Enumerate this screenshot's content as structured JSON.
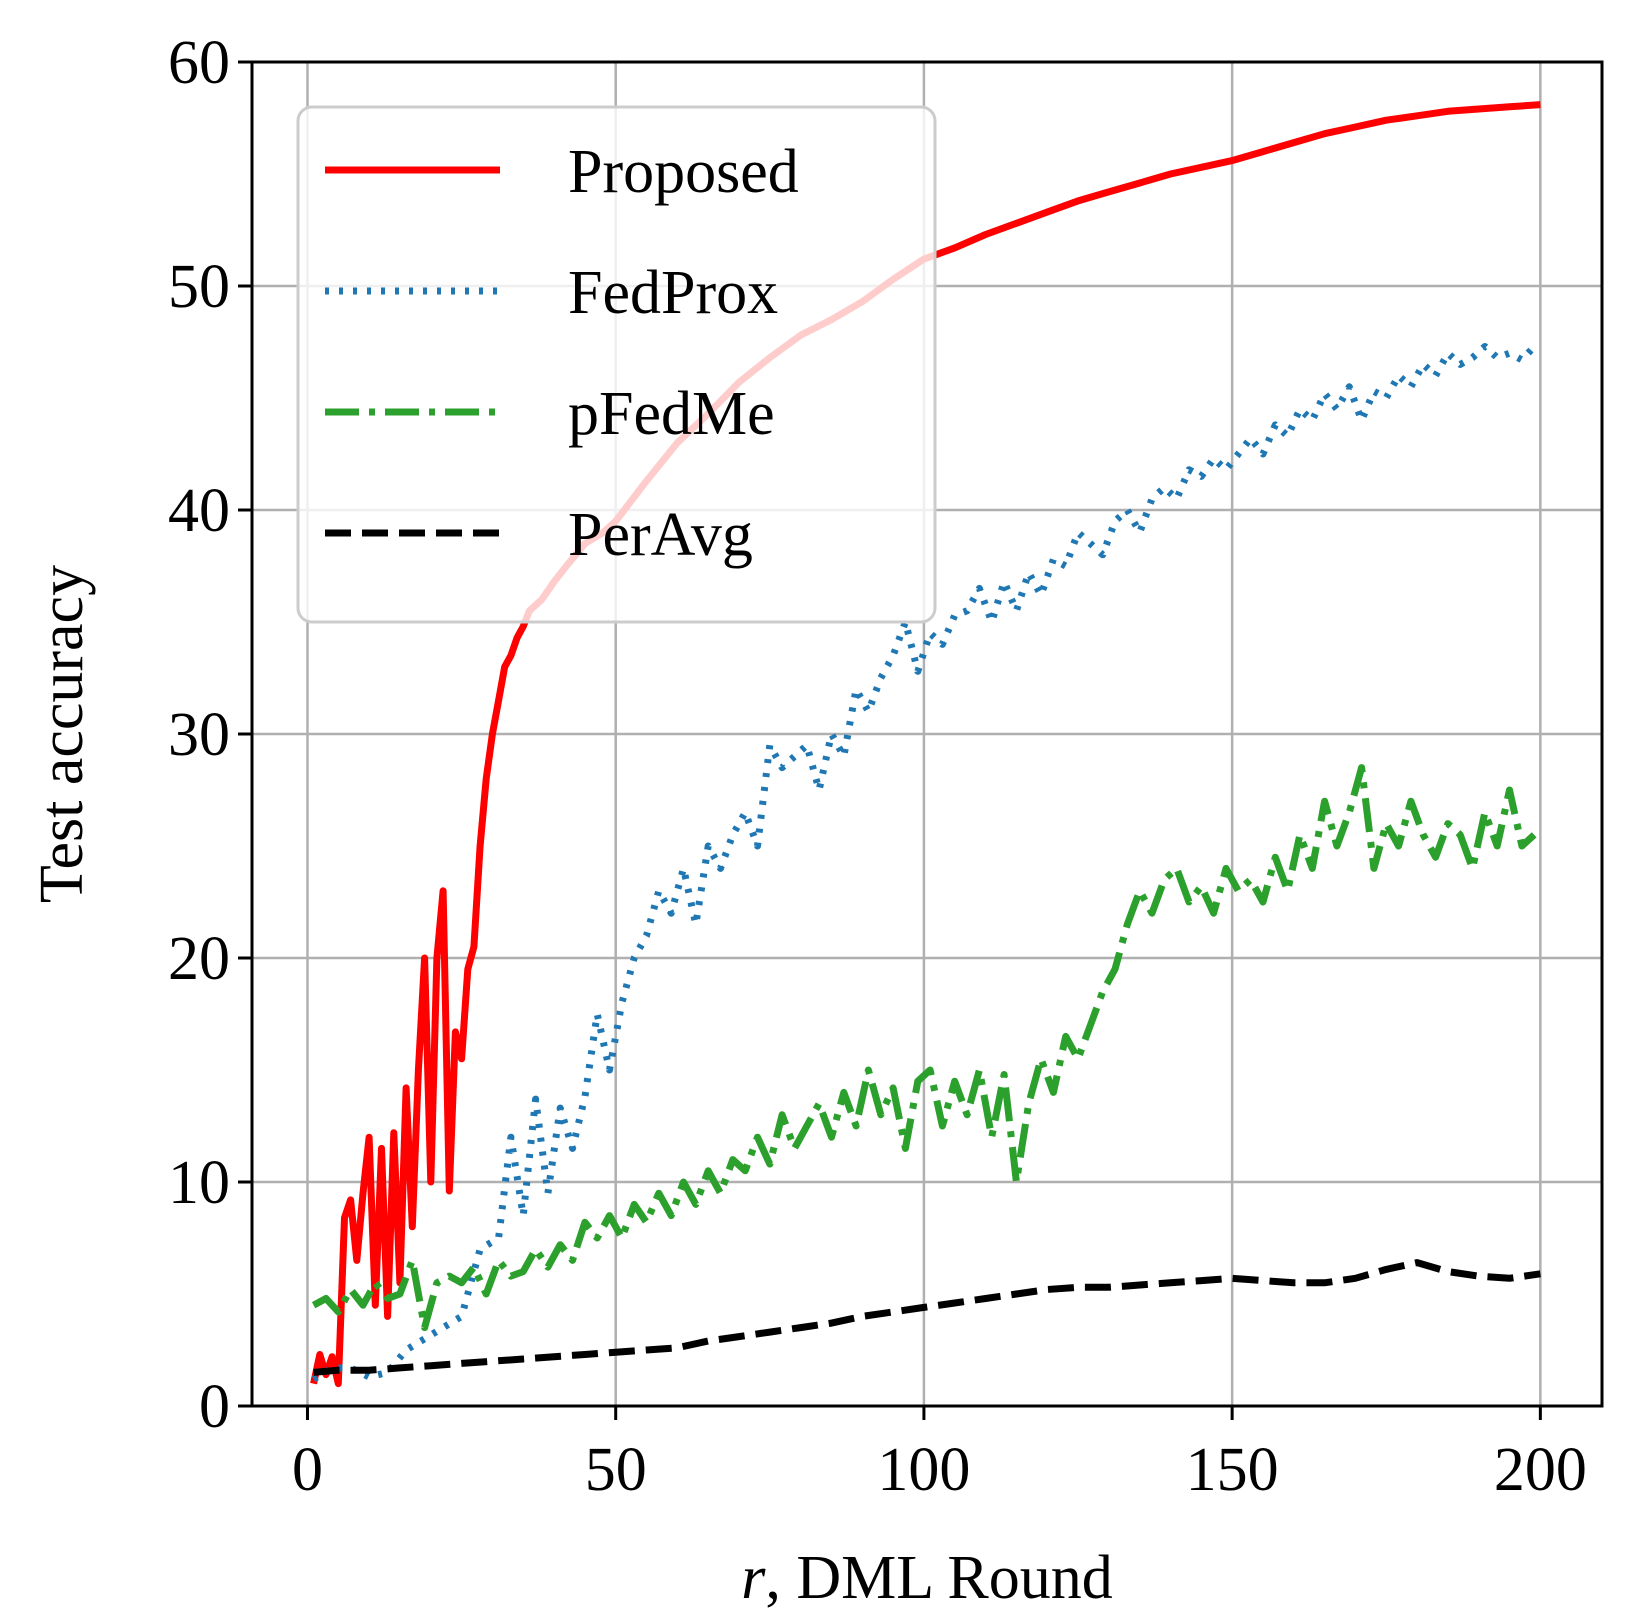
{
  "chart_data": {
    "type": "line",
    "title": "",
    "xlabel_var": "r",
    "xlabel_rest": ", DML Round",
    "ylabel": "Test accuracy",
    "xlim": [
      -9,
      210
    ],
    "ylim": [
      0,
      60
    ],
    "xticks": [
      0,
      50,
      100,
      150,
      200
    ],
    "yticks": [
      0,
      10,
      20,
      30,
      40,
      50,
      60
    ],
    "grid": true,
    "legend_position": "top-left",
    "series": [
      {
        "name": "Proposed",
        "color": "#ff0000",
        "style": "solid",
        "x": [
          1,
          2,
          3,
          4,
          5,
          6,
          7,
          8,
          9,
          10,
          11,
          12,
          13,
          14,
          15,
          16,
          17,
          18,
          19,
          20,
          21,
          22,
          23,
          24,
          25,
          26,
          27,
          28,
          29,
          30,
          31,
          32,
          33,
          34,
          35,
          36,
          38,
          40,
          42,
          45,
          48,
          50,
          55,
          60,
          65,
          70,
          75,
          80,
          85,
          90,
          95,
          100,
          105,
          110,
          115,
          120,
          125,
          130,
          135,
          140,
          145,
          150,
          155,
          160,
          165,
          170,
          175,
          180,
          185,
          190,
          195,
          200
        ],
        "y": [
          1,
          2.3,
          1.4,
          2.2,
          1,
          8.4,
          9.2,
          6.5,
          9.5,
          12,
          4.5,
          11.5,
          4,
          12.2,
          5.5,
          14.2,
          8,
          15,
          20,
          10,
          20,
          23,
          9.6,
          16.7,
          15.5,
          19.5,
          20.5,
          25,
          28,
          30,
          31.5,
          33,
          33.5,
          34.3,
          34.8,
          35.5,
          36,
          36.8,
          37.5,
          38.5,
          39,
          39.5,
          41.3,
          43,
          44.3,
          45.7,
          46.8,
          47.8,
          48.5,
          49.3,
          50.3,
          51.2,
          51.7,
          52.3,
          52.8,
          53.3,
          53.8,
          54.2,
          54.6,
          55,
          55.3,
          55.6,
          56,
          56.4,
          56.8,
          57.1,
          57.4,
          57.6,
          57.8,
          57.9,
          58,
          58.1
        ]
      },
      {
        "name": "FedProx",
        "color": "#1f77b4",
        "style": "dotted",
        "x": [
          1,
          4,
          7,
          10,
          13,
          16,
          19,
          22,
          25,
          28,
          31,
          33,
          35,
          37,
          39,
          41,
          43,
          45,
          47,
          49,
          51,
          53,
          55,
          57,
          59,
          61,
          63,
          65,
          67,
          69,
          71,
          73,
          75,
          77,
          79,
          81,
          83,
          85,
          87,
          89,
          91,
          93,
          95,
          97,
          99,
          101,
          103,
          105,
          107,
          109,
          111,
          113,
          115,
          117,
          119,
          121,
          123,
          125,
          127,
          129,
          131,
          133,
          135,
          137,
          139,
          141,
          143,
          145,
          147,
          149,
          151,
          153,
          155,
          157,
          159,
          161,
          163,
          165,
          167,
          169,
          171,
          173,
          175,
          177,
          179,
          181,
          183,
          185,
          187,
          189,
          191,
          193,
          195,
          197,
          199
        ],
        "y": [
          1.2,
          1.7,
          1.7,
          1.3,
          1.5,
          2.5,
          3,
          3.5,
          4,
          7,
          7.5,
          12,
          8.5,
          13.7,
          9.5,
          13.3,
          11.5,
          13.8,
          17.5,
          15,
          18,
          20,
          21,
          23,
          22,
          24,
          21.5,
          25,
          24,
          25.5,
          26.5,
          25,
          29.5,
          28.5,
          29,
          29.5,
          27.5,
          30,
          29,
          32,
          31,
          32.5,
          33.5,
          35,
          32.8,
          34.5,
          34,
          35.3,
          35.5,
          36.5,
          35,
          36.8,
          35.5,
          37.2,
          36.2,
          37.8,
          37.5,
          39,
          38.5,
          38,
          39.5,
          40,
          39,
          40.5,
          41,
          40.5,
          41.8,
          41.5,
          42.3,
          41.8,
          42.5,
          43.2,
          42.5,
          43.8,
          43.3,
          44.5,
          44,
          45.2,
          44.5,
          45.5,
          44,
          45.3,
          45,
          46,
          45.5,
          46.5,
          46,
          47,
          46.5,
          46.8,
          47.3,
          46.8,
          47,
          46.7,
          47.3
        ]
      },
      {
        "name": "pFedMe",
        "color": "#2ca02c",
        "style": "dashdot",
        "x": [
          1,
          3,
          5,
          7,
          9,
          11,
          13,
          15,
          17,
          19,
          21,
          23,
          25,
          27,
          29,
          31,
          33,
          35,
          37,
          39,
          41,
          43,
          45,
          47,
          49,
          51,
          53,
          55,
          57,
          59,
          61,
          63,
          65,
          67,
          69,
          71,
          73,
          75,
          77,
          79,
          81,
          83,
          85,
          87,
          89,
          91,
          93,
          95,
          97,
          99,
          101,
          103,
          105,
          107,
          109,
          111,
          113,
          115,
          117,
          119,
          121,
          123,
          125,
          127,
          129,
          131,
          133,
          135,
          137,
          139,
          141,
          143,
          145,
          147,
          149,
          151,
          153,
          155,
          157,
          159,
          161,
          163,
          165,
          167,
          169,
          171,
          173,
          175,
          177,
          179,
          181,
          183,
          185,
          187,
          189,
          191,
          193,
          195,
          197,
          199
        ],
        "y": [
          4.5,
          4.8,
          4.2,
          5.2,
          4.5,
          5.5,
          4.8,
          5,
          6.5,
          3.5,
          5.5,
          5.8,
          5.5,
          6.2,
          5,
          6.5,
          5.8,
          6,
          7,
          6.2,
          7.2,
          6.5,
          8.2,
          7.5,
          8.5,
          7.5,
          9,
          8.2,
          9.5,
          8.5,
          10,
          9,
          10.5,
          9.5,
          11,
          10.5,
          12,
          10.8,
          13,
          11.5,
          12.5,
          13.5,
          12,
          14,
          12.5,
          15,
          13,
          14.2,
          11.5,
          14.5,
          15,
          12.5,
          14.5,
          13,
          15,
          12,
          14.8,
          10,
          13.5,
          15.5,
          14,
          16.5,
          15.5,
          17,
          18.5,
          19.5,
          21.5,
          23,
          22,
          23.5,
          24,
          22.5,
          23.2,
          22,
          24,
          23,
          23.5,
          22.5,
          24.5,
          23,
          25.5,
          24,
          27,
          25,
          26.5,
          28.5,
          24,
          26,
          25,
          27,
          25.5,
          24.5,
          26,
          25.5,
          24,
          26.5,
          25,
          27.5,
          25,
          25.5
        ]
      },
      {
        "name": "PerAvg",
        "color": "#000000",
        "style": "dashed",
        "x": [
          1,
          5,
          10,
          15,
          20,
          25,
          30,
          35,
          40,
          45,
          50,
          55,
          60,
          65,
          70,
          75,
          80,
          85,
          90,
          95,
          100,
          105,
          110,
          115,
          120,
          125,
          130,
          135,
          140,
          145,
          150,
          155,
          160,
          165,
          170,
          175,
          180,
          185,
          190,
          195,
          200
        ],
        "y": [
          1.5,
          1.6,
          1.6,
          1.7,
          1.8,
          1.9,
          2,
          2.1,
          2.2,
          2.3,
          2.4,
          2.5,
          2.6,
          2.9,
          3.1,
          3.3,
          3.5,
          3.7,
          4,
          4.2,
          4.4,
          4.6,
          4.8,
          5,
          5.2,
          5.3,
          5.3,
          5.4,
          5.5,
          5.6,
          5.7,
          5.6,
          5.5,
          5.5,
          5.7,
          6.1,
          6.4,
          6,
          5.8,
          5.7,
          5.9
        ]
      }
    ]
  }
}
